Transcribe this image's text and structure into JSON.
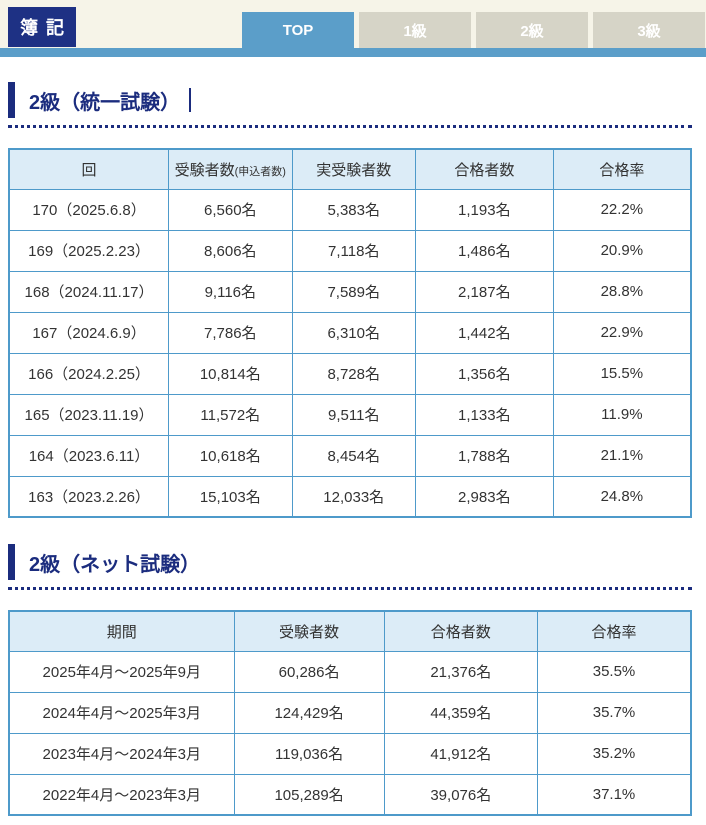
{
  "colors": {
    "navy": "#1b2c7e",
    "logo_navy": "#1e3184",
    "accent_blue": "#5b9ec9",
    "tab_inactive": "#d6d4c7",
    "table_border": "#4e9aca",
    "table_header_bg": "#dcecf7",
    "header_bg": "#f6f4e8"
  },
  "brand": {
    "logo": "簿記"
  },
  "nav": {
    "tabs": [
      {
        "label": "TOP",
        "active": true
      },
      {
        "label": "1級",
        "active": false
      },
      {
        "label": "2級",
        "active": false
      },
      {
        "label": "3級",
        "active": false
      }
    ]
  },
  "sections": [
    {
      "title": "2級（統一試験）",
      "table": {
        "headers": [
          {
            "text": "回"
          },
          {
            "text": "受験者数",
            "small": "(申込者数)"
          },
          {
            "text": "実受験者数"
          },
          {
            "text": "合格者数"
          },
          {
            "text": "合格率"
          }
        ],
        "rows": [
          [
            "170（2025.6.8）",
            "6,560名",
            "5,383名",
            "1,193名",
            "22.2%"
          ],
          [
            "169（2025.2.23）",
            "8,606名",
            "7,118名",
            "1,486名",
            "20.9%"
          ],
          [
            "168（2024.11.17）",
            "9,116名",
            "7,589名",
            "2,187名",
            "28.8%"
          ],
          [
            "167（2024.6.9）",
            "7,786名",
            "6,310名",
            "1,442名",
            "22.9%"
          ],
          [
            "166（2024.2.25）",
            "10,814名",
            "8,728名",
            "1,356名",
            "15.5%"
          ],
          [
            "165（2023.11.19）",
            "11,572名",
            "9,511名",
            "1,133名",
            "11.9%"
          ],
          [
            "164（2023.6.11）",
            "10,618名",
            "8,454名",
            "1,788名",
            "21.1%"
          ],
          [
            "163（2023.2.26）",
            "15,103名",
            "12,033名",
            "2,983名",
            "24.8%"
          ]
        ]
      }
    },
    {
      "title": "2級（ネット試験）",
      "table": {
        "headers": [
          {
            "text": "期間"
          },
          {
            "text": "受験者数"
          },
          {
            "text": "合格者数"
          },
          {
            "text": "合格率"
          }
        ],
        "rows": [
          [
            "2025年4月～2025年9月",
            "60,286名",
            "21,376名",
            "35.5%"
          ],
          [
            "2024年4月～2025年3月",
            "124,429名",
            "44,359名",
            "35.7%"
          ],
          [
            "2023年4月～2024年3月",
            "119,036名",
            "41,912名",
            "35.2%"
          ],
          [
            "2022年4月～2023年3月",
            "105,289名",
            "39,076名",
            "37.1%"
          ]
        ]
      }
    }
  ]
}
